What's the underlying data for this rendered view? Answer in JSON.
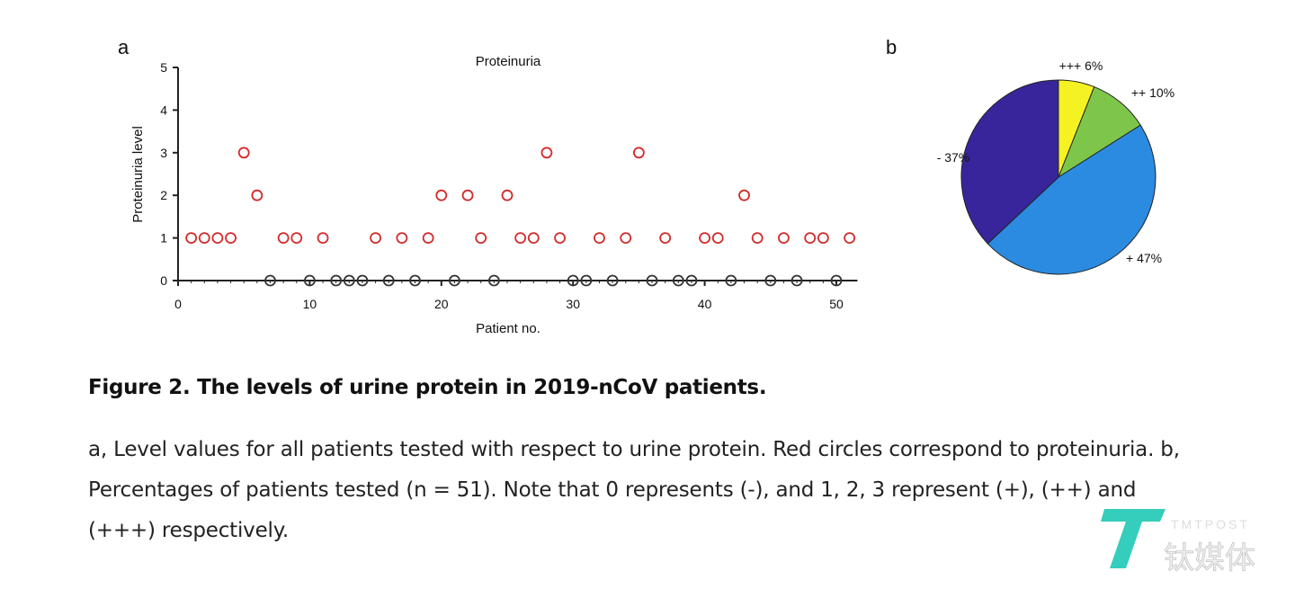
{
  "chart_data": [
    {
      "panel": "a",
      "type": "scatter",
      "title": "Proteinuria",
      "xlabel": "Patient no.",
      "ylabel": "Proteinuria level",
      "xlim": [
        0,
        51
      ],
      "ylim": [
        0,
        5
      ],
      "xticks": [
        0,
        10,
        20,
        30,
        40,
        50
      ],
      "yticks": [
        0,
        1,
        2,
        3,
        4,
        5
      ],
      "x": [
        1,
        2,
        3,
        4,
        5,
        6,
        7,
        8,
        9,
        10,
        11,
        12,
        13,
        14,
        15,
        16,
        17,
        18,
        19,
        20,
        21,
        22,
        23,
        24,
        25,
        26,
        27,
        28,
        29,
        30,
        31,
        32,
        33,
        34,
        35,
        36,
        37,
        38,
        39,
        40,
        41,
        42,
        43,
        44,
        45,
        46,
        47,
        48,
        49,
        50,
        51
      ],
      "y": [
        1,
        1,
        1,
        1,
        3,
        2,
        0,
        1,
        1,
        0,
        1,
        0,
        0,
        0,
        1,
        0,
        1,
        0,
        1,
        2,
        0,
        2,
        1,
        0,
        2,
        1,
        1,
        3,
        1,
        0,
        0,
        1,
        0,
        1,
        3,
        0,
        1,
        0,
        0,
        1,
        1,
        0,
        2,
        1,
        0,
        1,
        0,
        1,
        1,
        0,
        1
      ],
      "colors": {
        "proteinuria": "#d42a2a",
        "negative": "#333333"
      }
    },
    {
      "panel": "b",
      "type": "pie",
      "slices": [
        {
          "label": "+++ 6%",
          "value": 6,
          "color": "#f5f224"
        },
        {
          "label": "++ 10%",
          "value": 10,
          "color": "#7ec64a"
        },
        {
          "label": "+ 47%",
          "value": 47,
          "color": "#2b8be0"
        },
        {
          "label": "- 37%",
          "value": 37,
          "color": "#38259b"
        }
      ]
    }
  ],
  "caption": {
    "title": "Figure 2. The levels of urine protein in 2019-nCoV patients.",
    "body": "a, Level values for all patients tested with respect to urine protein. Red circles correspond to proteinuria. b, Percentages of patients tested (n = 51). Note that 0 represents (-), and 1, 2, 3 represent (+), (++) and (+++) respectively."
  },
  "panel_labels": {
    "a": "a",
    "b": "b"
  },
  "watermark": {
    "en": "TMTPOST",
    "cn": "钛媒体"
  }
}
